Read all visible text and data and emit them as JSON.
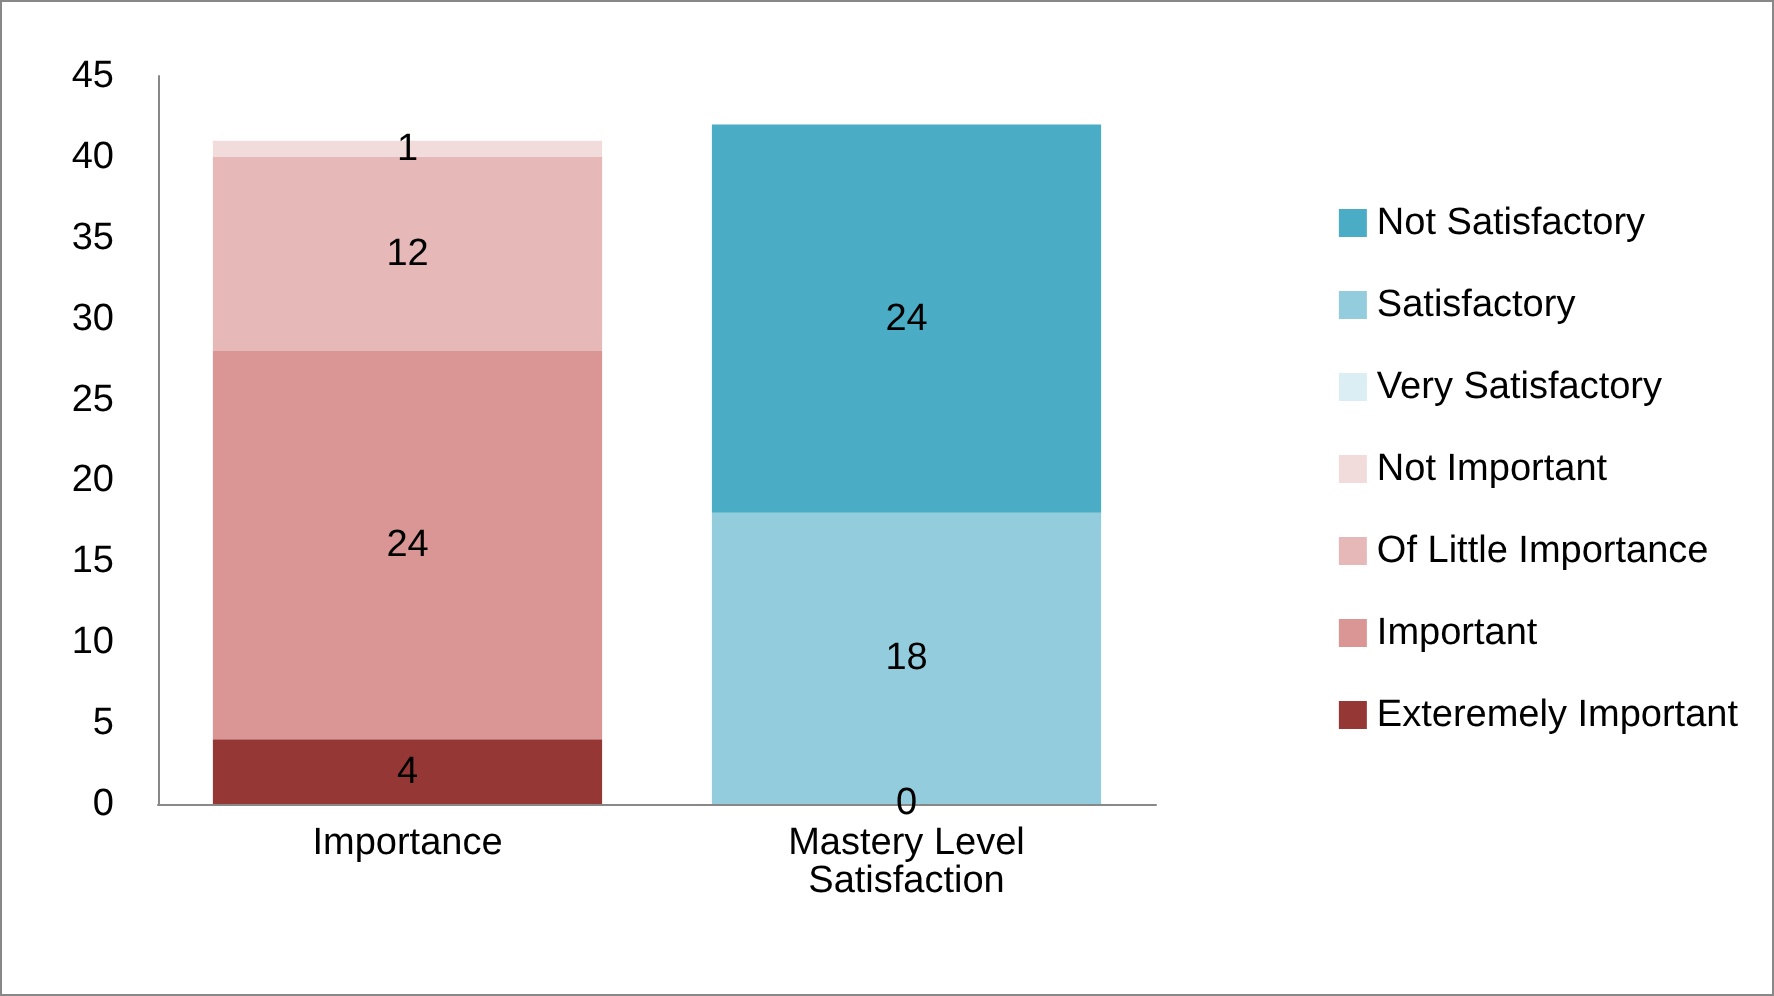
{
  "chart_data": {
    "type": "bar",
    "stacked": true,
    "categories": [
      "Importance",
      "Mastery Level Satisfaction"
    ],
    "series": [
      {
        "name": "Exteremely Important",
        "color": "#953735",
        "values": [
          4,
          null
        ]
      },
      {
        "name": "Important",
        "color": "#d99694",
        "values": [
          24,
          null
        ]
      },
      {
        "name": "Of Little Importance",
        "color": "#e6b9b8",
        "values": [
          12,
          null
        ]
      },
      {
        "name": "Not Important",
        "color": "#f2dcdb",
        "values": [
          1,
          null
        ]
      },
      {
        "name": "Very Satisfactory",
        "color": "#dbeef4",
        "values": [
          null,
          0
        ]
      },
      {
        "name": "Satisfactory",
        "color": "#93cddd",
        "values": [
          null,
          18
        ]
      },
      {
        "name": "Not Satisfactory",
        "color": "#4bacc6",
        "values": [
          null,
          24
        ]
      }
    ],
    "ylim": [
      0,
      45
    ],
    "yticks": [
      0,
      5,
      10,
      15,
      20,
      25,
      30,
      35,
      40,
      45
    ],
    "grid": false,
    "legend": "right",
    "data_labels": true
  }
}
